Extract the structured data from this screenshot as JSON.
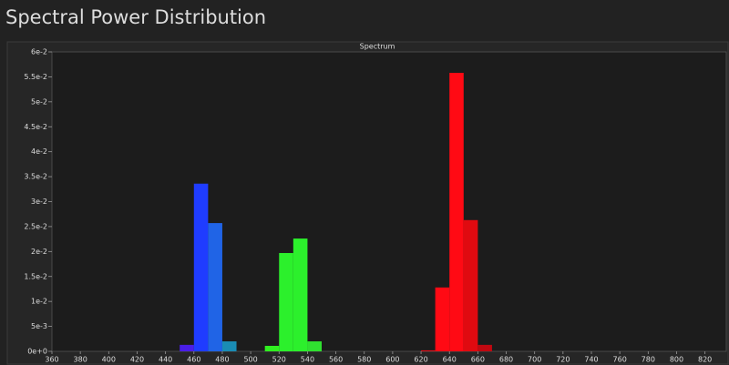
{
  "title": "Spectral Power Distribution",
  "chart_data": {
    "type": "histogram",
    "title": "Spectrum",
    "bins": [
      450,
      460,
      470,
      480,
      490,
      500,
      510,
      520,
      530,
      540,
      550,
      560,
      570,
      580,
      590,
      600,
      610,
      620,
      630,
      640,
      650,
      660,
      670
    ],
    "values": [
      0.0013,
      0.0336,
      0.0257,
      0.002,
      0,
      0,
      0.0011,
      0.0197,
      0.0226,
      0.002,
      0,
      0,
      0,
      0,
      0,
      0,
      0,
      0.0002,
      0.0128,
      0.0558,
      0.0263,
      0.0013
    ],
    "colors": [
      "#4a1ee8",
      "#1f3cff",
      "#2064e6",
      "#1a8cb4",
      "#1ab0a0",
      "#1ad080",
      "#30f020",
      "#2cf02c",
      "#2cf02c",
      "#30e030",
      "#60e030",
      "#90d030",
      "#c0c030",
      "#e0a030",
      "#f07020",
      "#ff4010",
      "#ff2010",
      "#e8101a",
      "#ff0a14",
      "#ff0a14",
      "#e00a10",
      "#c00810"
    ],
    "xlim": [
      360,
      835
    ],
    "ylim": [
      0,
      0.06
    ],
    "xticks": [
      360,
      380,
      400,
      420,
      440,
      460,
      480,
      500,
      520,
      540,
      560,
      580,
      600,
      620,
      640,
      660,
      680,
      700,
      720,
      740,
      760,
      780,
      800,
      820
    ],
    "yticks": [
      {
        "value": 0,
        "label": "0e+0"
      },
      {
        "value": 0.005,
        "label": "5e-3"
      },
      {
        "value": 0.01,
        "label": "1e-2"
      },
      {
        "value": 0.015,
        "label": "1.5e-2"
      },
      {
        "value": 0.02,
        "label": "2e-2"
      },
      {
        "value": 0.025,
        "label": "2.5e-2"
      },
      {
        "value": 0.03,
        "label": "3e-2"
      },
      {
        "value": 0.035,
        "label": "3.5e-2"
      },
      {
        "value": 0.04,
        "label": "4e-2"
      },
      {
        "value": 0.045,
        "label": "4.5e-2"
      },
      {
        "value": 0.05,
        "label": "5e-2"
      },
      {
        "value": 0.055,
        "label": "5.5e-2"
      },
      {
        "value": 0.06,
        "label": "6e-2"
      }
    ]
  }
}
